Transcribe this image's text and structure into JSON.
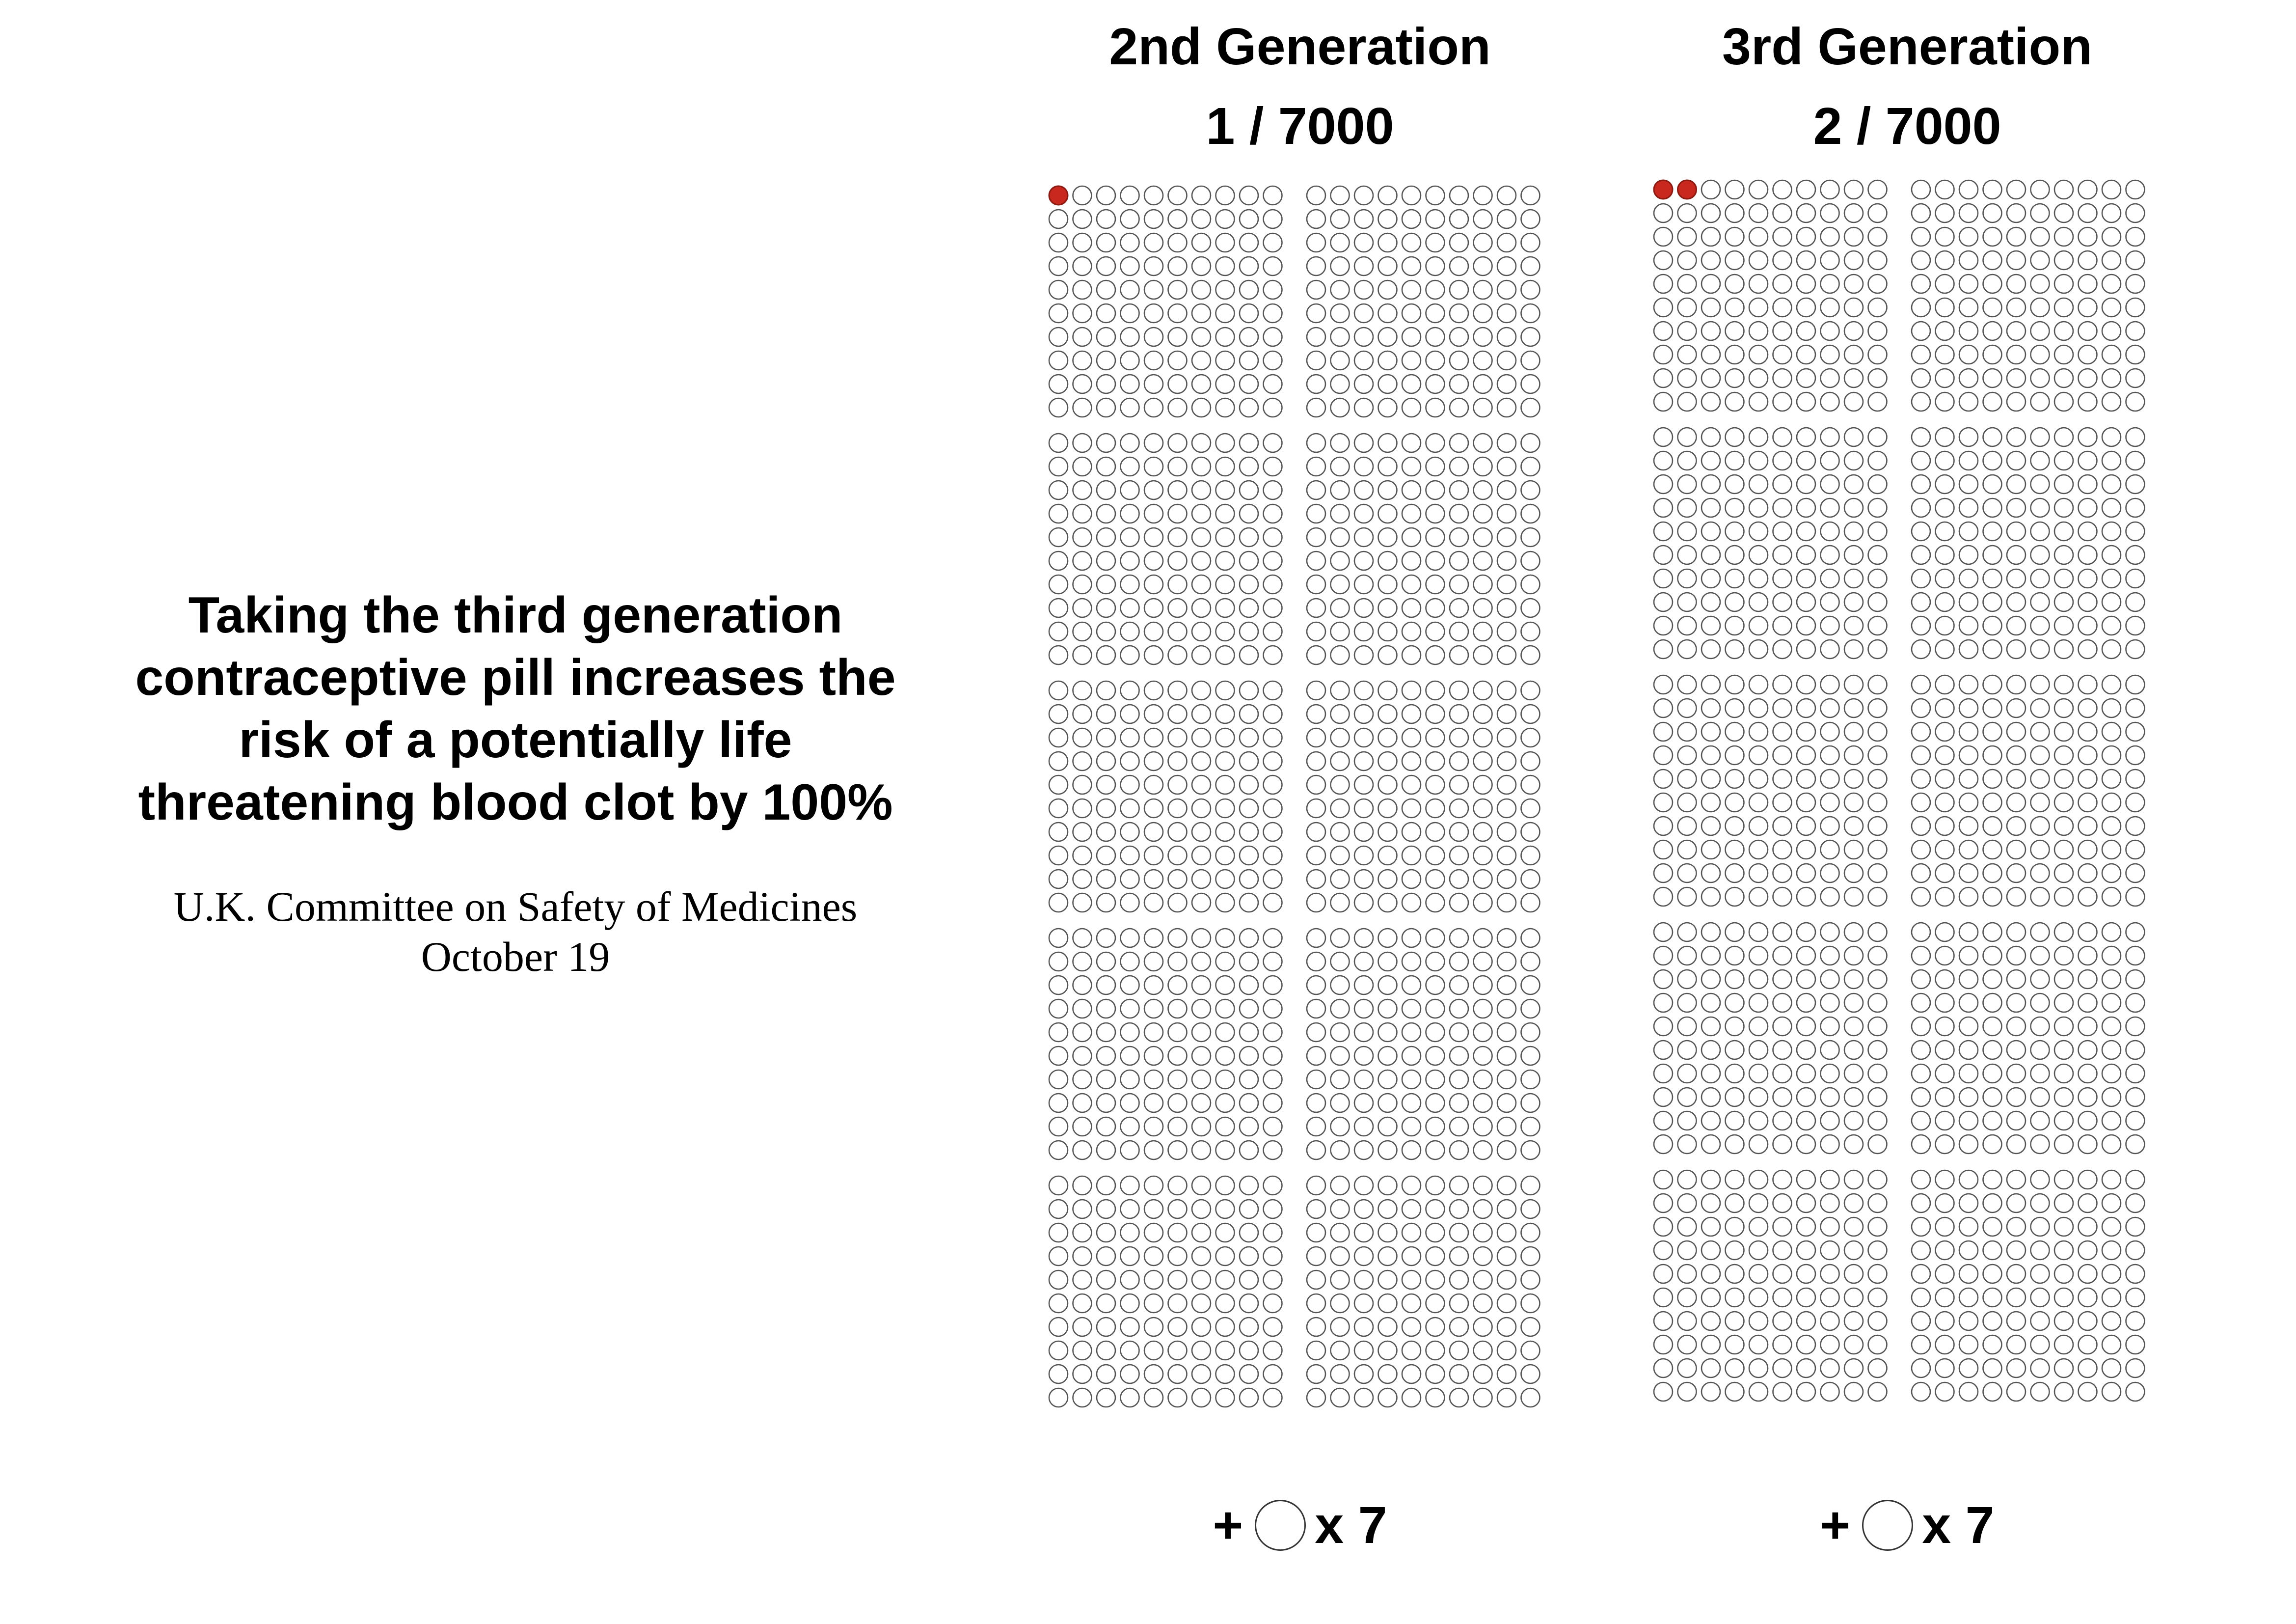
{
  "headline": [
    "Taking the third generation",
    "contraceptive pill increases the",
    "risk of a potentially life",
    "threatening blood clot by 100%"
  ],
  "source": [
    "U.K. Committee on Safety of Medicines",
    "October 19"
  ],
  "colors": {
    "highlight": "#c8281e",
    "highlight_stroke": "#8a1a12",
    "outline": "#555555",
    "text": "#000000"
  },
  "chart_data": {
    "type": "icon-array",
    "units_per_panel": 1000,
    "total_per_group": 7000,
    "panels": [
      {
        "title": "2nd Generation",
        "ratio": "1 / 7000",
        "highlighted": 1,
        "footer": {
          "prefix": "+",
          "multiplier": "x 7",
          "icon": "circle-icon"
        }
      },
      {
        "title": "3rd Generation",
        "ratio": "2 / 7000",
        "highlighted": 2,
        "footer": {
          "prefix": "+",
          "multiplier": "x 7",
          "icon": "circle-icon"
        }
      }
    ]
  }
}
